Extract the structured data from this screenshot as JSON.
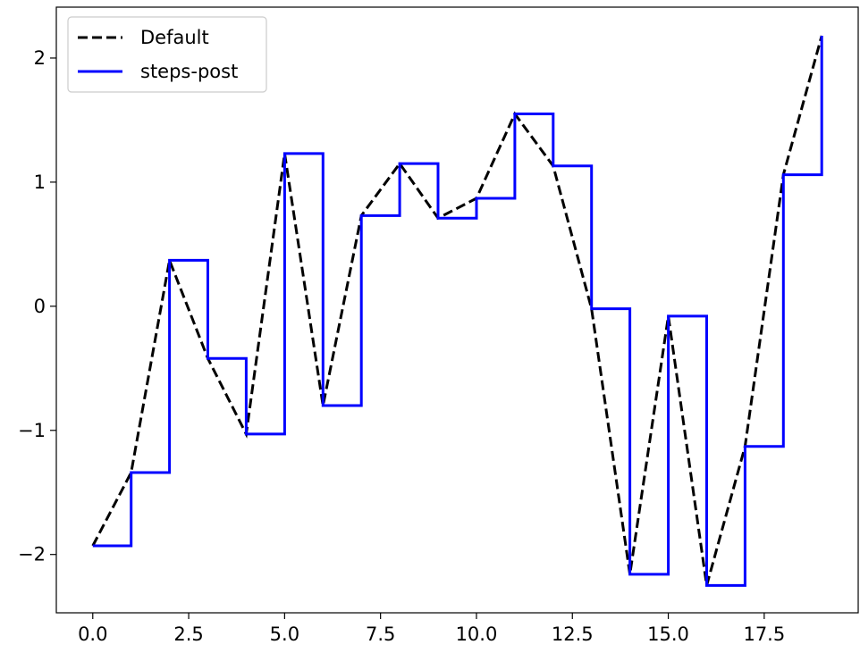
{
  "chart_data": {
    "type": "line",
    "title": "",
    "xlabel": "",
    "ylabel": "",
    "xlim": [
      -0.95,
      19.95
    ],
    "ylim": [
      -2.47,
      2.41
    ],
    "xticks": [
      0.0,
      2.5,
      5.0,
      7.5,
      10.0,
      12.5,
      15.0,
      17.5
    ],
    "xtick_labels": [
      "0.0",
      "2.5",
      "5.0",
      "7.5",
      "10.0",
      "12.5",
      "15.0",
      "17.5"
    ],
    "yticks": [
      -2,
      -1,
      0,
      1,
      2
    ],
    "ytick_labels": [
      "−2",
      "−1",
      "0",
      "1",
      "2"
    ],
    "grid": false,
    "legend_position": "top-left",
    "x": [
      0,
      1,
      2,
      3,
      4,
      5,
      6,
      7,
      8,
      9,
      10,
      11,
      12,
      13,
      14,
      15,
      16,
      17,
      18,
      19
    ],
    "series": [
      {
        "name": "Default",
        "drawstyle": "default",
        "linestyle": "dashed",
        "color": "#000000",
        "values": [
          -1.93,
          -1.34,
          0.37,
          -0.42,
          -1.03,
          1.23,
          -0.8,
          0.73,
          1.15,
          0.71,
          0.87,
          1.55,
          1.13,
          -0.02,
          -2.16,
          -0.08,
          -2.25,
          -1.13,
          1.06,
          2.18
        ]
      },
      {
        "name": "steps-post",
        "drawstyle": "steps-post",
        "linestyle": "solid",
        "color": "#0000ff",
        "values": [
          -1.93,
          -1.34,
          0.37,
          -0.42,
          -1.03,
          1.23,
          -0.8,
          0.73,
          1.15,
          0.71,
          0.87,
          1.55,
          1.13,
          -0.02,
          -2.16,
          -0.08,
          -2.25,
          -1.13,
          1.06,
          2.18
        ]
      }
    ]
  }
}
